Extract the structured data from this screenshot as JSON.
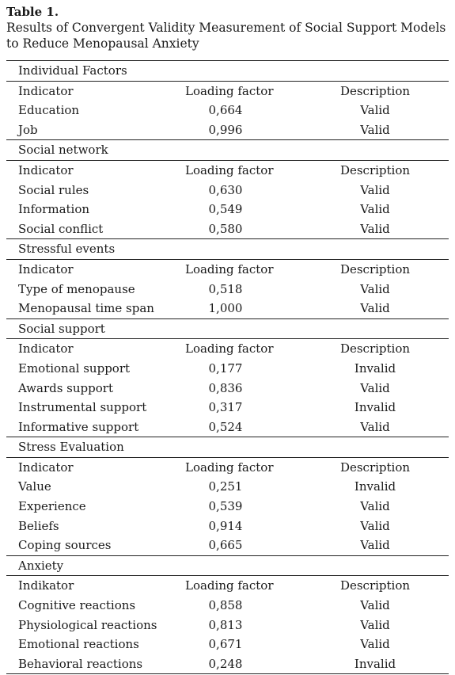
{
  "caption": {
    "label": "Table 1.",
    "text": "Results of Convergent Validity Measurement of Social Support Models to Reduce Menopausal Anxiety"
  },
  "groups": [
    {
      "title": "Individual Factors",
      "header": [
        "Indicator",
        "Loading factor",
        "Description"
      ],
      "rows": [
        [
          "Education",
          "0,664",
          "Valid"
        ],
        [
          "Job",
          "0,996",
          "Valid"
        ]
      ]
    },
    {
      "title": "Social network",
      "header": [
        "Indicator",
        "Loading factor",
        "Description"
      ],
      "rows": [
        [
          "Social rules",
          "0,630",
          "Valid"
        ],
        [
          "Information",
          "0,549",
          "Valid"
        ],
        [
          "Social conflict",
          "0,580",
          "Valid"
        ]
      ]
    },
    {
      "title": "Stressful events",
      "header": [
        "Indicator",
        "Loading factor",
        "Description"
      ],
      "rows": [
        [
          "Type of menopause",
          "0,518",
          "Valid"
        ],
        [
          "Menopausal time span",
          "1,000",
          "Valid"
        ]
      ]
    },
    {
      "title": "Social support",
      "header": [
        "Indicator",
        "Loading factor",
        "Description"
      ],
      "rows": [
        [
          "Emotional support",
          "0,177",
          "Invalid"
        ],
        [
          "Awards support",
          "0,836",
          "Valid"
        ],
        [
          "Instrumental support",
          "0,317",
          "Invalid"
        ],
        [
          "Informative support",
          "0,524",
          "Valid"
        ]
      ]
    },
    {
      "title": "Stress Evaluation",
      "header": [
        "Indicator",
        "Loading factor",
        "Description"
      ],
      "rows": [
        [
          "Value",
          "0,251",
          "Invalid"
        ],
        [
          "Experience",
          "0,539",
          "Valid"
        ],
        [
          "Beliefs",
          "0,914",
          "Valid"
        ],
        [
          "Coping sources",
          "0,665",
          "Valid"
        ]
      ]
    },
    {
      "title": "Anxiety",
      "header": [
        "Indikator",
        "Loading factor",
        "Description"
      ],
      "rows": [
        [
          "Cognitive reactions",
          "0,858",
          "Valid"
        ],
        [
          "Physiological reactions",
          "0,813",
          "Valid"
        ],
        [
          "Emotional reactions",
          "0,671",
          "Valid"
        ],
        [
          "Behavioral reactions",
          "0,248",
          "Invalid"
        ]
      ]
    }
  ]
}
